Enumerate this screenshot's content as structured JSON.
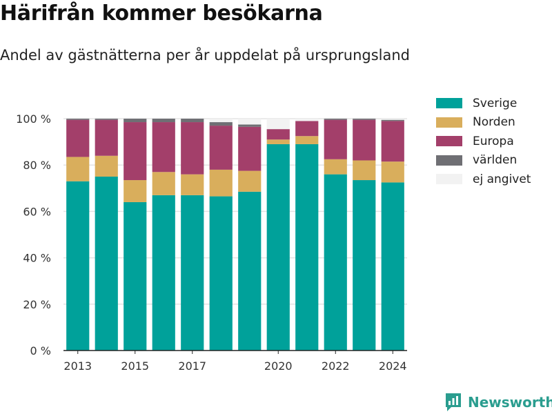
{
  "title": "Härifrån kommer besökarna",
  "subtitle": "Andel av gästnätterna per år uppdelat på ursprungsland",
  "brand": "Newsworthy",
  "colors": {
    "brand": "#2a9d8f",
    "Sverige": "#00a19a",
    "Norden": "#d9ae5c",
    "Europa": "#a33f6a",
    "världen": "#6f6f74",
    "ej angivet": "#f2f2f2"
  },
  "legend": [
    "Sverige",
    "Norden",
    "Europa",
    "världen",
    "ej angivet"
  ],
  "chart_data": {
    "type": "bar",
    "stacked": true,
    "categories": [
      "2013",
      "2014",
      "2015",
      "2016",
      "2017",
      "2018",
      "2019",
      "2020",
      "2021",
      "2022",
      "2023",
      "2024"
    ],
    "x_tick_labels": [
      "2013",
      "2015",
      "2017",
      "2020",
      "2022",
      "2024"
    ],
    "y_tick_labels": [
      "0 %",
      "20 %",
      "40 %",
      "60 %",
      "80 %",
      "100 %"
    ],
    "ylim": [
      0,
      100
    ],
    "grid": true,
    "legend_position": "right",
    "series": [
      {
        "name": "Sverige",
        "values": [
          73,
          75,
          64,
          67,
          67,
          66.5,
          68.5,
          89,
          89,
          76,
          73.5,
          72.5
        ]
      },
      {
        "name": "Norden",
        "values": [
          10.5,
          9,
          9.5,
          10,
          9,
          11.5,
          9,
          2,
          3.5,
          6.5,
          8.5,
          9
        ]
      },
      {
        "name": "Europa",
        "values": [
          16,
          15.5,
          25,
          21.5,
          22.5,
          19,
          19,
          4.5,
          6.5,
          17,
          17.5,
          17.5
        ]
      },
      {
        "name": "världen",
        "values": [
          0.5,
          0.5,
          1.5,
          1.5,
          1.5,
          1.5,
          1,
          0,
          0,
          0.5,
          0.5,
          0.5
        ]
      },
      {
        "name": "ej angivet",
        "values": [
          0,
          0,
          0,
          0,
          0,
          1.5,
          2.5,
          4.5,
          1,
          0,
          0,
          0.5
        ]
      }
    ]
  }
}
